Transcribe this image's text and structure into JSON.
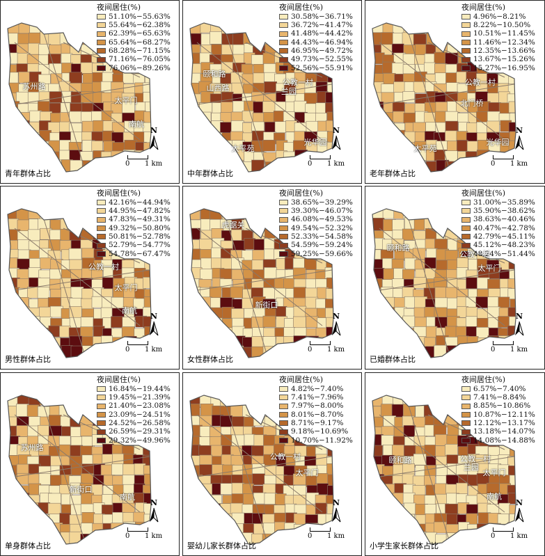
{
  "legend_title": "夜间居住(%)",
  "north_label": "N",
  "scale_labels": {
    "zero": "0",
    "one": "1 km"
  },
  "panels": [
    {
      "caption": "青年群体占比",
      "palette": [
        "#f8ecbd",
        "#f3d698",
        "#e8b56d",
        "#d49448",
        "#b66a2c",
        "#8e3d1f",
        "#5c0d10"
      ],
      "classes": [
        "51.10%−55.63%",
        "55.64%−62.38%",
        "62.39%−65.63%",
        "65.64%−68.27%",
        "68.28%−71.15%",
        "71.16%−76.05%",
        "76.06%−89.26%"
      ],
      "places": [
        "苏州路",
        "太平门",
        "南航"
      ]
    },
    {
      "caption": "中年群体占比",
      "palette": [
        "#f8ecbd",
        "#f3d698",
        "#e8b56d",
        "#d49448",
        "#b66a2c",
        "#8e3d1f",
        "#5c0d10"
      ],
      "classes": [
        "30.58%−36.71%",
        "36.72%−41.47%",
        "41.48%−44.42%",
        "44.43%−46.94%",
        "46.95%−49.72%",
        "49.73%−52.55%",
        "52.56%−55.91%"
      ],
      "places": [
        "颐和路",
        "山西路",
        "公教一村",
        "兰园",
        "光华园",
        "太平苑"
      ]
    },
    {
      "caption": "老年群体占比",
      "palette": [
        "#f8ecbd",
        "#f3d698",
        "#e8b56d",
        "#d49448",
        "#b66a2c",
        "#8e3d1f",
        "#5c0d10"
      ],
      "classes": [
        "4.96%−8.21%",
        "8.22%−10.50%",
        "10.51%−11.45%",
        "11.46%−12.34%",
        "12.35%−13.66%",
        "13.67%−15.26%",
        "15.27%−16.95%"
      ],
      "places": [
        "公教一村",
        "北门桥",
        "太平苑",
        "光华园"
      ]
    },
    {
      "caption": "男性群体占比",
      "palette": [
        "#f8ecbd",
        "#f3d698",
        "#e8b56d",
        "#d49448",
        "#b66a2c",
        "#8e3d1f",
        "#5c0d10"
      ],
      "classes": [
        "42.16%−44.94%",
        "44.95%−47.82%",
        "47.83%−49.31%",
        "49.32%−50.80%",
        "50.81%−52.78%",
        "52.79%−54.77%",
        "54.78%−67.47%"
      ],
      "places": [
        "公教一村",
        "太平门",
        "南航"
      ]
    },
    {
      "caption": "女性群体占比",
      "palette": [
        "#f8ecbd",
        "#f3d698",
        "#e8b56d",
        "#d49448",
        "#b66a2c",
        "#8e3d1f",
        "#5c0d10"
      ],
      "classes": [
        "38.65%−39.29%",
        "39.30%−46.07%",
        "46.08%−49.53%",
        "49.54%−52.32%",
        "52.33%−54.58%",
        "54.59%−59.24%",
        "59.25%−59.66%"
      ],
      "places": [
        "虎踞关",
        "新街口"
      ]
    },
    {
      "caption": "已婚群体占比",
      "palette": [
        "#f8ecbd",
        "#f3d698",
        "#e8b56d",
        "#d49448",
        "#b66a2c",
        "#8e3d1f",
        "#5c0d10"
      ],
      "classes": [
        "31.00%−35.89%",
        "35.90%−38.62%",
        "38.63%−40.46%",
        "40.47%−42.78%",
        "42.79%−45.11%",
        "45.12%−48.23%",
        "48.24%−51.44%"
      ],
      "places": [
        "颐和路",
        "公教一村",
        "太平门"
      ]
    },
    {
      "caption": "单身群体占比",
      "palette": [
        "#f8ecbd",
        "#f3d698",
        "#e8b56d",
        "#d49448",
        "#b66a2c",
        "#8e3d1f",
        "#5c0d10"
      ],
      "classes": [
        "16.84%−19.44%",
        "19.45%−21.39%",
        "21.40%−23.08%",
        "23.09%−24.51%",
        "24.52%−26.58%",
        "26.59%−29.31%",
        "29.32%−49.96%"
      ],
      "places": [
        "苏州路",
        "新街口",
        "南航"
      ]
    },
    {
      "caption": "婴幼儿家长群体占比",
      "palette": [
        "#f8ecbd",
        "#f3d698",
        "#e8b56d",
        "#d49448",
        "#b66a2c",
        "#8e3d1f",
        "#5c0d10"
      ],
      "classes": [
        "4.82%−7.40%",
        "7.41%−7.96%",
        "7.97%−8.00%",
        "8.01%−8.70%",
        "8.71%−9.17%",
        "9.18%−10.69%",
        "10.70%−11.92%"
      ],
      "places": [
        "公教一村",
        "太平门"
      ]
    },
    {
      "caption": "小学生家长群体占比",
      "palette": [
        "#f8ecbd",
        "#f3d698",
        "#e8b56d",
        "#d49448",
        "#b66a2c",
        "#8e3d1f",
        "#5c0d10"
      ],
      "classes": [
        "6.57%−7.40%",
        "7.41%−8.84%",
        "8.85%−10.86%",
        "10.87%−12.11%",
        "12.12%−13.17%",
        "13.18%−14.07%",
        "14.08%−14.88%"
      ],
      "places": [
        "颐和路",
        "公教一村",
        "兰园",
        "太平门",
        "南航"
      ]
    }
  ]
}
